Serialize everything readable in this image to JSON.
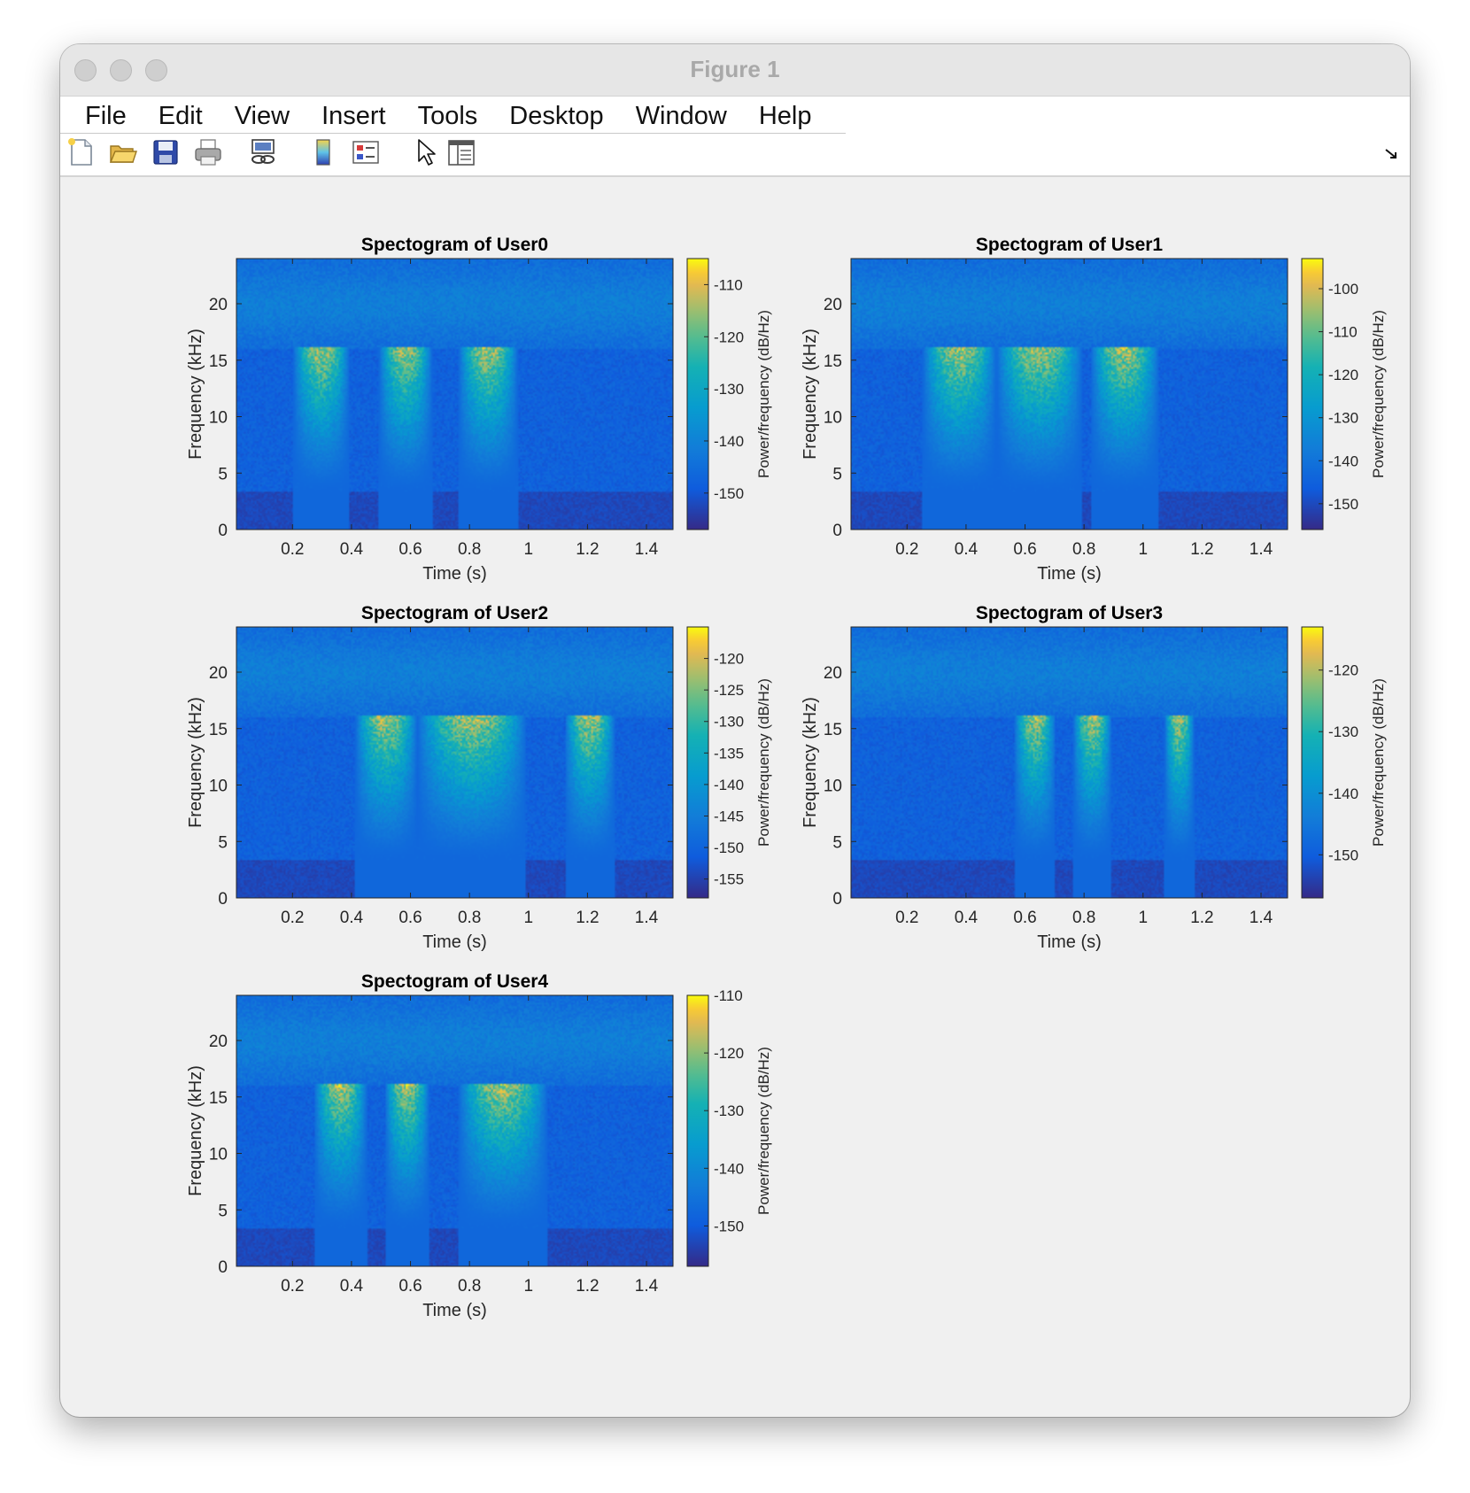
{
  "window": {
    "title": "Figure 1"
  },
  "menu": [
    "File",
    "Edit",
    "View",
    "Insert",
    "Tools",
    "Desktop",
    "Window",
    "Help"
  ],
  "toolbar": [
    {
      "icon": "new-figure-icon"
    },
    {
      "icon": "open-file-icon"
    },
    {
      "icon": "save-icon"
    },
    {
      "icon": "print-icon"
    },
    {
      "icon": "link-plot-icon"
    },
    {
      "icon": "insert-colorbar-icon"
    },
    {
      "icon": "insert-legend-icon"
    },
    {
      "icon": "edit-plot-pointer-icon"
    },
    {
      "icon": "property-editor-icon"
    }
  ],
  "chart_data": [
    {
      "type": "heatmap",
      "title": "Spectogram of User0",
      "xlabel": "Time (s)",
      "ylabel": "Frequency (kHz)",
      "xticks": [
        "0.2",
        "0.4",
        "0.6",
        "0.8",
        "1",
        "1.2",
        "1.4"
      ],
      "yticks": [
        "0",
        "5",
        "10",
        "15",
        "20"
      ],
      "xlim": [
        0.01,
        1.49
      ],
      "ylim": [
        0,
        24
      ],
      "colorbar": {
        "label": "Power/frequency (dB/Hz)",
        "ticks": [
          "-110",
          "-120",
          "-130",
          "-140",
          "-150"
        ],
        "range": [
          -157,
          -105
        ]
      },
      "bursts": [
        [
          0.2,
          0.39
        ],
        [
          0.49,
          0.67
        ],
        [
          0.76,
          0.96
        ]
      ]
    },
    {
      "type": "heatmap",
      "title": "Spectogram of User1",
      "xlabel": "Time (s)",
      "ylabel": "Frequency (kHz)",
      "xticks": [
        "0.2",
        "0.4",
        "0.6",
        "0.8",
        "1",
        "1.2",
        "1.4"
      ],
      "yticks": [
        "0",
        "5",
        "10",
        "15",
        "20"
      ],
      "xlim": [
        0.01,
        1.49
      ],
      "ylim": [
        0,
        24
      ],
      "colorbar": {
        "label": "Power/frequency (dB/Hz)",
        "ticks": [
          "-100",
          "-110",
          "-120",
          "-130",
          "-140",
          "-150"
        ],
        "range": [
          -156,
          -93
        ]
      },
      "bursts": [
        [
          0.25,
          0.5
        ],
        [
          0.5,
          0.79
        ],
        [
          0.82,
          1.05
        ]
      ]
    },
    {
      "type": "heatmap",
      "title": "Spectogram of User2",
      "xlabel": "Time (s)",
      "ylabel": "Frequency (kHz)",
      "xticks": [
        "0.2",
        "0.4",
        "0.6",
        "0.8",
        "1",
        "1.2",
        "1.4"
      ],
      "yticks": [
        "0",
        "5",
        "10",
        "15",
        "20"
      ],
      "xlim": [
        0.01,
        1.49
      ],
      "ylim": [
        0,
        24
      ],
      "colorbar": {
        "label": "Power/frequency (dB/Hz)",
        "ticks": [
          "-120",
          "-125",
          "-130",
          "-135",
          "-140",
          "-145",
          "-150",
          "-155"
        ],
        "range": [
          -158,
          -115
        ]
      },
      "bursts": [
        [
          0.41,
          0.62
        ],
        [
          0.62,
          0.99
        ],
        [
          1.12,
          1.29
        ]
      ]
    },
    {
      "type": "heatmap",
      "title": "Spectogram of User3",
      "xlabel": "Time (s)",
      "ylabel": "Frequency (kHz)",
      "xticks": [
        "0.2",
        "0.4",
        "0.6",
        "0.8",
        "1",
        "1.2",
        "1.4"
      ],
      "yticks": [
        "0",
        "5",
        "10",
        "15",
        "20"
      ],
      "xlim": [
        0.01,
        1.49
      ],
      "ylim": [
        0,
        24
      ],
      "colorbar": {
        "label": "Power/frequency (dB/Hz)",
        "ticks": [
          "-120",
          "-130",
          "-140",
          "-150"
        ],
        "range": [
          -157,
          -113
        ]
      },
      "bursts": [
        [
          0.56,
          0.7
        ],
        [
          0.76,
          0.89
        ],
        [
          1.07,
          1.17
        ]
      ]
    },
    {
      "type": "heatmap",
      "title": "Spectogram of User4",
      "xlabel": "Time (s)",
      "ylabel": "Frequency (kHz)",
      "xticks": [
        "0.2",
        "0.4",
        "0.6",
        "0.8",
        "1",
        "1.2",
        "1.4"
      ],
      "yticks": [
        "0",
        "5",
        "10",
        "15",
        "20"
      ],
      "xlim": [
        0.01,
        1.49
      ],
      "ylim": [
        0,
        24
      ],
      "colorbar": {
        "label": "Power/frequency (dB/Hz)",
        "ticks": [
          "-110",
          "-120",
          "-130",
          "-140",
          "-150"
        ],
        "range": [
          -157,
          -110
        ]
      },
      "bursts": [
        [
          0.27,
          0.45
        ],
        [
          0.51,
          0.66
        ],
        [
          0.76,
          1.06
        ]
      ]
    }
  ]
}
